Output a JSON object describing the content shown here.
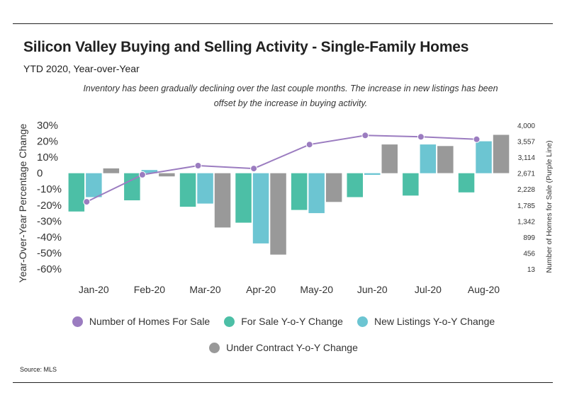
{
  "header": {
    "title": "Silicon Valley Buying and Selling Activity - Single-Family Homes",
    "subtitle": "YTD 2020, Year-over-Year",
    "annotation": "Inventory has been gradually declining over the last couple months. The increase in new listings has been offset by the increase in buying activity."
  },
  "source": "Source:  MLS",
  "colors": {
    "for_sale": "#4cbfa6",
    "new_listings": "#6cc5d2",
    "under_contract": "#999999",
    "homes_line": "#9b7cc0"
  },
  "chart_data": {
    "type": "bar",
    "categories": [
      "Jan-20",
      "Feb-20",
      "Mar-20",
      "Apr-20",
      "May-20",
      "Jun-20",
      "Jul-20",
      "Aug-20"
    ],
    "series": [
      {
        "name": "For Sale Y-o-Y Change",
        "values": [
          -24,
          -17,
          -21,
          -31,
          -23,
          -15,
          -14,
          -12
        ]
      },
      {
        "name": "New Listings Y-o-Y Change",
        "values": [
          -15,
          2,
          -19,
          -44,
          -25,
          -1,
          18,
          20
        ]
      },
      {
        "name": "Under Contract Y-o-Y Change",
        "values": [
          3,
          -2,
          -34,
          -51,
          -18,
          18,
          17,
          24
        ]
      }
    ],
    "line_series": {
      "name": "Number of Homes For Sale",
      "values": [
        1877,
        2627,
        2881,
        2800,
        3465,
        3720,
        3680,
        3612
      ]
    },
    "ylabel": "Year-Over-Year Percentage Change",
    "y2label": "Number of Homes for Sale (Purple Line)",
    "ylim": [
      -60,
      30
    ],
    "y_ticks": [
      "30%",
      "20%",
      "10%",
      "0",
      "-10%",
      "-20%",
      "-30%",
      "-40%",
      "-50%",
      "-60%"
    ],
    "y2lim": [
      13,
      4000
    ],
    "y2_ticks": [
      "4,000",
      "3,557",
      "3,114",
      "2,671",
      "2,228",
      "1,785",
      "1,342",
      "899",
      "456",
      "13"
    ],
    "grid": false,
    "legend_position": "bottom"
  }
}
